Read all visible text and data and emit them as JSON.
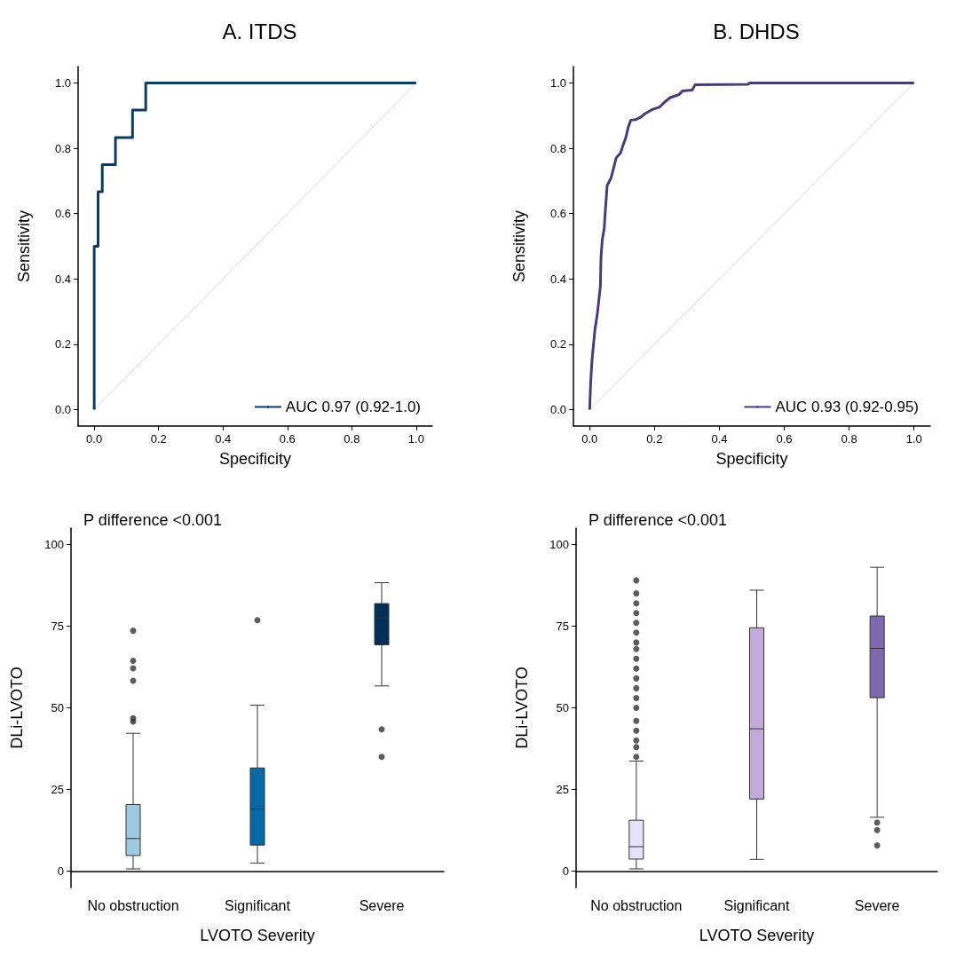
{
  "chart_data": [
    {
      "type": "line",
      "title": "A. ITDS",
      "xlabel": "Specificity",
      "ylabel": "Sensitivity",
      "xlim": [
        -0.05,
        1.05
      ],
      "ylim": [
        -0.05,
        1.05
      ],
      "xticks": [
        {
          "value": 0,
          "label": "0.0"
        },
        {
          "value": 0.2,
          "label": "0.2"
        },
        {
          "value": 0.4,
          "label": "0.4"
        },
        {
          "value": 0.6,
          "label": "0.6"
        },
        {
          "value": 0.8,
          "label": "0.8"
        },
        {
          "value": 1,
          "label": "1.0"
        }
      ],
      "yticks": [
        {
          "value": 0,
          "label": "0.0"
        },
        {
          "value": 0.2,
          "label": "0.2"
        },
        {
          "value": 0.4,
          "label": "0.4"
        },
        {
          "value": 0.6,
          "label": "0.6"
        },
        {
          "value": 0.8,
          "label": "0.8"
        },
        {
          "value": 1,
          "label": "1.0"
        }
      ],
      "grid": false,
      "legend": "bottom right",
      "marker": "none",
      "series": [
        {
          "color": "#cccccc",
          "x": [
            0,
            1
          ],
          "values": [
            0,
            1
          ]
        },
        {
          "name": "AUC 0.97 (0.92-1.0)",
          "color": "#0b3a63",
          "x": [
            0,
            0,
            0.012,
            0.012,
            0.025,
            0.025,
            0.066,
            0.066,
            0.119,
            0.119,
            0.16,
            0.16,
            1
          ],
          "values": [
            0,
            0.5,
            0.5,
            0.667,
            0.667,
            0.75,
            0.75,
            0.833,
            0.833,
            0.917,
            0.917,
            1,
            1
          ]
        }
      ]
    },
    {
      "type": "line",
      "title": "B. DHDS",
      "xlabel": "Specificity",
      "ylabel": "Sensitivity",
      "xlim": [
        -0.05,
        1.05
      ],
      "ylim": [
        -0.05,
        1.05
      ],
      "xticks": [
        {
          "value": 0,
          "label": "0.0"
        },
        {
          "value": 0.2,
          "label": "0.2"
        },
        {
          "value": 0.4,
          "label": "0.4"
        },
        {
          "value": 0.6,
          "label": "0.6"
        },
        {
          "value": 0.8,
          "label": "0.8"
        },
        {
          "value": 1,
          "label": "1.0"
        }
      ],
      "yticks": [
        {
          "value": 0,
          "label": "0.0"
        },
        {
          "value": 0.2,
          "label": "0.2"
        },
        {
          "value": 0.4,
          "label": "0.4"
        },
        {
          "value": 0.6,
          "label": "0.6"
        },
        {
          "value": 0.8,
          "label": "0.8"
        },
        {
          "value": 1,
          "label": "1.0"
        }
      ],
      "grid": false,
      "legend": "bottom right",
      "marker": "none",
      "series": [
        {
          "color": "#cccccc",
          "x": [
            0,
            1
          ],
          "values": [
            0,
            1
          ]
        },
        {
          "name": "AUC 0.93 (0.92-0.95)",
          "color": "#4b3a7a",
          "x": [
            0,
            0.003,
            0.007,
            0.016,
            0.024,
            0.028,
            0.033,
            0.035,
            0.039,
            0.045,
            0.049,
            0.054,
            0.066,
            0.075,
            0.082,
            0.095,
            0.104,
            0.112,
            0.119,
            0.127,
            0.143,
            0.157,
            0.171,
            0.194,
            0.216,
            0.232,
            0.248,
            0.275,
            0.286,
            0.316,
            0.325,
            0.489,
            0.493,
            1
          ],
          "values": [
            0,
            0.08,
            0.148,
            0.242,
            0.296,
            0.332,
            0.377,
            0.466,
            0.52,
            0.556,
            0.619,
            0.686,
            0.709,
            0.744,
            0.771,
            0.785,
            0.812,
            0.834,
            0.865,
            0.886,
            0.888,
            0.895,
            0.906,
            0.919,
            0.926,
            0.942,
            0.955,
            0.964,
            0.975,
            0.978,
            0.994,
            0.996,
            1,
            1
          ]
        }
      ]
    },
    {
      "type": "box",
      "xlabel": "LVOTO Severity",
      "ylabel": "DLi-LVOTO",
      "annotations": [
        "P difference <0.001"
      ],
      "categories": [
        "No obstruction",
        "Significant",
        "Severe"
      ],
      "ylim": [
        -5,
        105
      ],
      "yticks": [
        0,
        25,
        50,
        75,
        100
      ],
      "grid": false,
      "colors": [
        "#9ecae1",
        "#0868a6",
        "#003057"
      ],
      "boxes": [
        {
          "low": 0.7,
          "q1": 4.8,
          "median": 10,
          "q3": 20.4,
          "high": 42.2,
          "outliers": [
            45.8,
            46.8,
            58.3,
            62.1,
            64.4,
            73.6
          ]
        },
        {
          "low": 2.5,
          "q1": 8,
          "median": 19,
          "q3": 31.6,
          "high": 50.8,
          "outliers": [
            76.8
          ]
        },
        {
          "low": 56.7,
          "q1": 69.3,
          "median": 77.6,
          "q3": 81.9,
          "high": 88.3,
          "outliers": [
            35,
            43.4
          ]
        }
      ]
    },
    {
      "type": "box",
      "xlabel": "LVOTO Severity",
      "ylabel": "DLi-LVOTO",
      "annotations": [
        "P difference <0.001"
      ],
      "categories": [
        "No obstruction",
        "Significant",
        "Severe"
      ],
      "ylim": [
        -5,
        105
      ],
      "yticks": [
        0,
        25,
        50,
        75,
        100
      ],
      "grid": false,
      "colors": [
        "#e6e3f8",
        "#c2aada",
        "#7f68ae"
      ],
      "boxes": [
        {
          "low": 0.7,
          "q1": 3.7,
          "median": 7.5,
          "q3": 15.6,
          "high": 33.7,
          "outliers": [
            35,
            38,
            40,
            43,
            46,
            50,
            53,
            56,
            59,
            62,
            65,
            68,
            70,
            73,
            76,
            79,
            82,
            85,
            89
          ]
        },
        {
          "low": 3.6,
          "q1": 22.1,
          "median": 43.6,
          "q3": 74.5,
          "high": 86
        },
        {
          "low": 16.5,
          "q1": 53.1,
          "median": 68.2,
          "q3": 78.1,
          "high": 93,
          "outliers": [
            7.9,
            12.6,
            14.9
          ]
        }
      ]
    }
  ]
}
